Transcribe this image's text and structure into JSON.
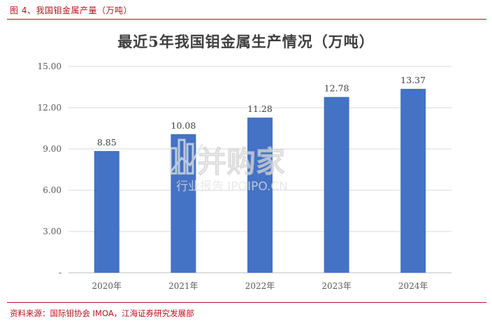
{
  "caption": "图 4、我国钼金属产量（万吨）",
  "source": "资料来源：国际钼协会 IMOA，江海证券研究发展部",
  "watermark": {
    "main": "并购家",
    "sub": "行业报告 IPOIPO.CN"
  },
  "colors": {
    "bar": "#4472c4",
    "accent": "#b5121b",
    "grid": "#d9d9d9"
  },
  "chart_data": {
    "type": "bar",
    "title": "最近5年我国钼金属生产情况（万吨）",
    "categories": [
      "2020年",
      "2021年",
      "2022年",
      "2023年",
      "2024年"
    ],
    "values": [
      8.85,
      10.08,
      11.28,
      12.78,
      13.37
    ],
    "data_labels": [
      "8.85",
      "10.08",
      "11.28",
      "12.78",
      "13.37"
    ],
    "yticks": [
      "-",
      "3.00",
      "6.00",
      "9.00",
      "12.00",
      "15.00"
    ],
    "ylim": [
      0,
      15
    ],
    "grid": true,
    "legend": false
  }
}
